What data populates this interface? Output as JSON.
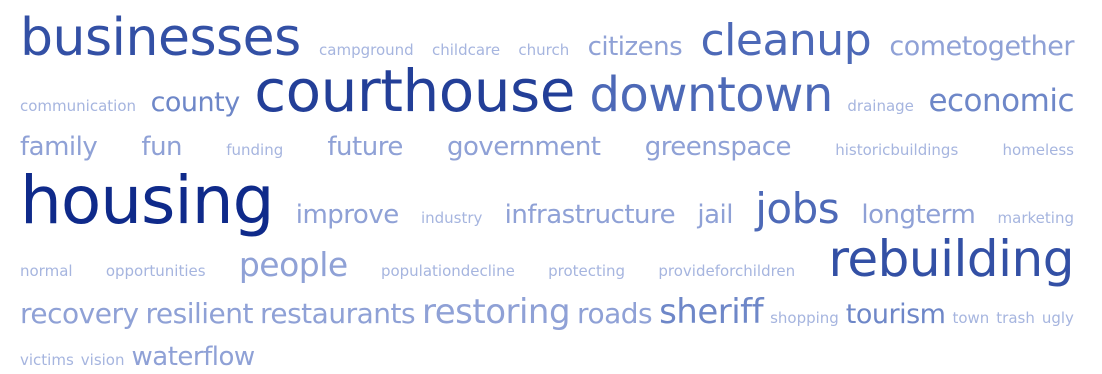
{
  "word_cloud": {
    "colors": {
      "smallest": "#a6b5df",
      "small": "#8fa1d6",
      "medium": "#6e87c8",
      "large": "#4d69b7",
      "xlarge": "#3350a5",
      "xxlarge": "#233f98",
      "largest": "#0f2a8a"
    },
    "words": [
      "businesses",
      "campground",
      "childcare",
      "church",
      "citizens",
      "cleanup",
      "cometogether",
      "communication",
      "county",
      "courthouse",
      "downtown",
      "drainage",
      "economic",
      "family",
      "fun",
      "funding",
      "future",
      "government",
      "greenspace",
      "historicbuildings",
      "homeless",
      "housing",
      "improve",
      "industry",
      "infrastructure",
      "jail",
      "jobs",
      "longterm",
      "marketing",
      "normal",
      "opportunities",
      "people",
      "populationdecline",
      "protecting",
      "provideforchildren",
      "rebuilding",
      "recovery",
      "resilient",
      "restaurants",
      "restoring",
      "roads",
      "sheriff",
      "shopping",
      "tourism",
      "town",
      "trash",
      "ugly",
      "victims",
      "vision",
      "waterflow"
    ]
  }
}
